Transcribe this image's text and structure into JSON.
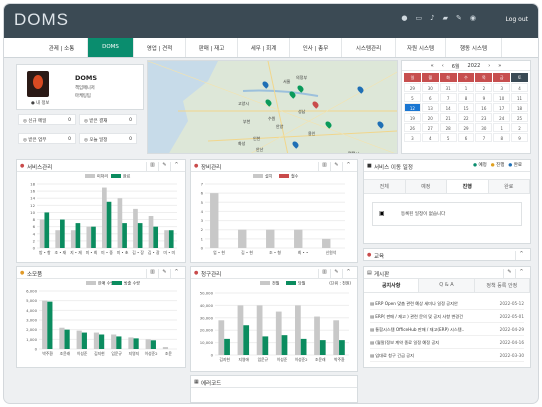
{
  "app": {
    "logo": "DOMS",
    "logout": "Log out"
  },
  "nav": {
    "tabs": [
      "관제 | 소통",
      "DOMS",
      "영업 | 견적",
      "판매 | 재고",
      "세무 | 회계",
      "인사 | 총무",
      "시스템관리",
      "자원 시스템",
      "행동 시스템"
    ],
    "active": 1
  },
  "profile": {
    "name": "DOMS",
    "title": "책임매니저",
    "dept": "마케팅팀",
    "my_info": "내 정보"
  },
  "stats": [
    {
      "label": "신규 메일",
      "value": "0"
    },
    {
      "label": "받은 결재",
      "value": "0"
    },
    {
      "label": "받은 업무",
      "value": "0"
    },
    {
      "label": "오늘 일정",
      "value": "0"
    }
  ],
  "calendar": {
    "month": "6월",
    "year": "2022",
    "weekdays": [
      "일",
      "월",
      "화",
      "수",
      "목",
      "금",
      "토"
    ],
    "selected": "12"
  },
  "map": {
    "labels": [
      "서울",
      "인천",
      "수원",
      "의정부",
      "고양시",
      "부천",
      "안양",
      "성남",
      "용인",
      "안산",
      "평택시",
      "화성"
    ]
  },
  "service": {
    "title": "서비스관리",
    "legend": [
      "미처리",
      "완료"
    ],
    "colors": {
      "gray": "#c8c8c8",
      "green": "#0b8c5f",
      "red": "#c94b4b"
    },
    "yticks": [
      "18",
      "16",
      "14",
      "12",
      "10",
      "8",
      "6",
      "4",
      "2",
      "0"
    ],
    "chart_data": {
      "type": "bar",
      "categories": [
        "방 • 항",
        "조 • 재",
        "지 • 재",
        "미 • 최",
        "미 • 중",
        "미 • 초",
        "김 • 장",
        "김 • 광",
        "미 • 미"
      ],
      "series": [
        {
          "name": "미처리",
          "values": [
            8,
            5,
            5,
            6,
            17,
            14,
            11,
            9,
            5
          ]
        },
        {
          "name": "완료",
          "values": [
            10,
            8,
            7,
            6,
            13,
            7,
            7,
            6,
            5
          ]
        }
      ],
      "ylim": [
        0,
        18
      ]
    }
  },
  "equipment": {
    "title": "장비관리",
    "legend": [
      "설치",
      "철수"
    ],
    "yticks": [
      "7",
      "6",
      "5",
      "4",
      "3",
      "2",
      "1",
      "0"
    ],
    "chart_data": {
      "type": "bar",
      "categories": [
        "업 • 현",
        "김 • 현",
        "조 • 형",
        "최 • •",
        "신원석"
      ],
      "series": [
        {
          "name": "설치",
          "values": [
            6,
            2,
            2,
            2,
            1
          ]
        },
        {
          "name": "철수",
          "values": [
            0,
            0,
            0,
            0,
            0
          ]
        }
      ],
      "ylim": [
        0,
        7
      ]
    }
  },
  "schedule": {
    "title": "서비스 이동 일정",
    "legend": [
      "예정",
      "진행",
      "완료"
    ],
    "tabs": [
      "전체",
      "예정",
      "진행",
      "완료"
    ],
    "active_tab": 2,
    "empty": "등록된 일정이 없습니다"
  },
  "edu": {
    "title": "교육"
  },
  "notice": {
    "title": "게시판",
    "tabs": [
      "공지사항",
      "Q & A",
      "정책 등록 안정"
    ],
    "items": [
      {
        "title": "ERP Open 맞춤 관련 예상 세미나 일정 공지안",
        "date": "2022-05-12"
      },
      {
        "title": "ERP( 판매 / 재고 ) 관련 문의 및 공지 사항 변경건",
        "date": "2022-05-01"
      },
      {
        "title": "통합시스템 OfficeHub 판매 / 재고(ERP) 시스템..",
        "date": "2022-04-29"
      },
      {
        "title": "(월말)정보 계약 종료 일정 예정 공지",
        "date": "2022-04-16"
      },
      {
        "title": "임대료 청구 긴급 공지",
        "date": "2022-03-30"
      }
    ]
  },
  "consume": {
    "title": "소모품",
    "legend": [
      "판매 수량",
      "방출 수량"
    ],
    "yticks": [
      "6,000",
      "5,000",
      "4,000",
      "3,000",
      "2,000",
      "1,000",
      "0"
    ],
    "chart_data": {
      "type": "bar",
      "categories": [
        "박주환",
        "조윤래",
        "이성준",
        "김지현",
        "임운규",
        "지영지",
        "이성준2",
        "조윤"
      ],
      "series": [
        {
          "name": "판매 수량",
          "values": [
            5000,
            2200,
            1900,
            1700,
            1500,
            1200,
            1000,
            200
          ]
        },
        {
          "name": "방출 수량",
          "values": [
            4900,
            2000,
            1700,
            1500,
            1300,
            1100,
            900,
            0
          ]
        }
      ],
      "ylim": [
        0,
        6000
      ]
    }
  },
  "billing": {
    "title": "청구관리",
    "unit": "(단위 : 천원)",
    "legend": [
      "전월",
      "당월"
    ],
    "yticks": [
      "50,000",
      "40,000",
      "30,000",
      "20,000",
      "10,000",
      "0"
    ],
    "chart_data": {
      "type": "bar",
      "categories": [
        "김지현",
        "지영애",
        "임운규",
        "이성준",
        "이성준2",
        "조윤래",
        "박주환"
      ],
      "series": [
        {
          "name": "전월",
          "values": [
            28000,
            40000,
            40000,
            35000,
            40000,
            31000,
            28000
          ]
        },
        {
          "name": "당월",
          "values": [
            13000,
            24000,
            15000,
            16000,
            13000,
            12000,
            12000
          ]
        }
      ],
      "ylim": [
        0,
        50000
      ]
    }
  },
  "error": {
    "title": "에러코드"
  }
}
